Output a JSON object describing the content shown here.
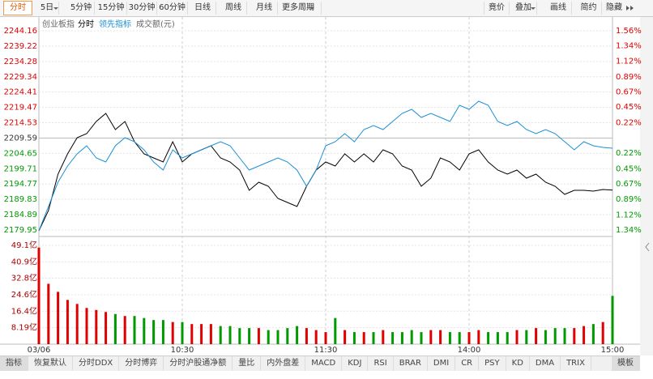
{
  "toolbar": {
    "left": [
      "分时",
      "5日",
      "5分钟",
      "15分钟",
      "30分钟",
      "60分钟",
      "日线",
      "周线",
      "月线",
      "更多周期"
    ],
    "right": [
      "竟价",
      "叠加",
      "画线",
      "简约",
      "隐藏"
    ]
  },
  "chart_data": [
    {
      "type": "line",
      "title": "创业板指",
      "series": [
        {
          "name": "分时",
          "color": "#000000",
          "values": [
            2179.69,
            2186.22,
            2197.96,
            2204.49,
            2209.71,
            2211.01,
            2214.93,
            2217.54,
            2212.32,
            2214.93,
            2208.4,
            2204.49,
            2203.18,
            2201.88,
            2208.4,
            2201.88,
            2204.49,
            2205.79,
            2207.1,
            2203.18,
            2201.88,
            2199.27,
            2192.74,
            2195.35,
            2194.05,
            2190.13,
            2188.83,
            2187.52,
            2194.05,
            2199.27,
            2201.88,
            2200.57,
            2204.49,
            2201.88,
            2204.49,
            2201.88,
            2205.79,
            2204.49,
            2200.57,
            2199.27,
            2194.05,
            2196.66,
            2203.18,
            2201.88,
            2199.27,
            2204.49,
            2205.79,
            2201.88,
            2199.27,
            2197.96,
            2199.27,
            2196.66,
            2197.96,
            2195.35,
            2194.05,
            2191.44,
            2192.74,
            2192.74,
            2192.48,
            2193.0,
            2192.8
          ]
        },
        {
          "name": "领先指标",
          "color": "#1a8fd6",
          "values": [
            2179.69,
            2187.52,
            2195.35,
            2200.57,
            2204.49,
            2207.1,
            2203.18,
            2201.88,
            2207.1,
            2209.71,
            2208.4,
            2205.79,
            2201.88,
            2199.27,
            2205.79,
            2203.18,
            2204.49,
            2205.79,
            2207.1,
            2208.4,
            2207.1,
            2203.18,
            2199.27,
            2200.57,
            2201.88,
            2203.18,
            2201.88,
            2199.27,
            2194.05,
            2199.27,
            2207.1,
            2208.4,
            2211.01,
            2208.4,
            2212.32,
            2213.62,
            2212.32,
            2214.93,
            2217.54,
            2218.84,
            2216.23,
            2217.54,
            2216.23,
            2214.93,
            2220.15,
            2218.84,
            2221.45,
            2220.15,
            2214.93,
            2213.62,
            2214.93,
            2212.32,
            2211.01,
            2212.32,
            2211.01,
            2208.4,
            2205.79,
            2208.4,
            2207.1,
            2206.58,
            2206.31
          ]
        }
      ],
      "ylim": [
        2179.95,
        2244.16
      ],
      "yticks": [
        2244.16,
        2239.22,
        2234.28,
        2229.34,
        2224.41,
        2219.47,
        2214.53,
        2209.59,
        2204.65,
        2199.71,
        2194.77,
        2189.83,
        2184.89,
        2179.95
      ],
      "y2lim": [
        -1.34,
        1.56
      ],
      "y2ticks": [
        {
          "value": 1.56,
          "label": "1.56%"
        },
        {
          "value": 1.34,
          "label": "1.34%"
        },
        {
          "value": 1.12,
          "label": "1.12%"
        },
        {
          "value": 0.89,
          "label": "0.89%"
        },
        {
          "value": 0.67,
          "label": "0.67%"
        },
        {
          "value": 0.45,
          "label": "0.45%"
        },
        {
          "value": 0.22,
          "label": "0.22%"
        },
        {
          "value": -0.22,
          "label": "0.22%"
        },
        {
          "value": -0.45,
          "label": "0.45%"
        },
        {
          "value": -0.67,
          "label": "0.67%"
        },
        {
          "value": -0.89,
          "label": "0.89%"
        },
        {
          "value": -1.12,
          "label": "1.12%"
        },
        {
          "value": -1.34,
          "label": "1.34%"
        }
      ],
      "grid": true
    },
    {
      "type": "bar",
      "title": "成交额(元)",
      "categories": [
        "03/06",
        null,
        null,
        null,
        null,
        null,
        null,
        null,
        null,
        null,
        null,
        null,
        null,
        null,
        null,
        "10:30",
        null,
        null,
        null,
        null,
        null,
        null,
        null,
        null,
        null,
        null,
        null,
        null,
        null,
        null,
        "11:30",
        null,
        null,
        null,
        null,
        null,
        null,
        null,
        null,
        null,
        null,
        null,
        null,
        null,
        null,
        "14:00",
        null,
        null,
        null,
        null,
        null,
        null,
        null,
        null,
        null,
        null,
        null,
        null,
        null,
        null,
        "15:00"
      ],
      "values": [
        48,
        30,
        26,
        22,
        20,
        18,
        17,
        16,
        15,
        14,
        14,
        13,
        12,
        12,
        11,
        11,
        10,
        10,
        10,
        9,
        9,
        8,
        8,
        8,
        7,
        7,
        8,
        9,
        8,
        7,
        6,
        13,
        7,
        6,
        6,
        6,
        7,
        6,
        6,
        7,
        6,
        7,
        7,
        6,
        6,
        6,
        7,
        6,
        6,
        6,
        7,
        7,
        8,
        7,
        8,
        8,
        8,
        9,
        10,
        11,
        24
      ],
      "ylim": [
        0,
        49.1
      ],
      "yticks": [
        {
          "value": 49.1,
          "label": "49.1亿"
        },
        {
          "value": 40.9,
          "label": "40.9亿"
        },
        {
          "value": 32.8,
          "label": "32.8亿"
        },
        {
          "value": 24.6,
          "label": "24.6亿"
        },
        {
          "value": 16.4,
          "label": "16.4亿"
        },
        {
          "value": 8.19,
          "label": "8.19亿"
        }
      ],
      "grid": true
    }
  ],
  "indicator_tabs": [
    "指标",
    "恢复默认",
    "分时DDX",
    "分时博弈",
    "分时沪股通净额",
    "量比",
    "内外盘差",
    "MACD",
    "KDJ",
    "RSI",
    "BRAR",
    "DMI",
    "CR",
    "PSY",
    "KD",
    "DMA",
    "TRIX",
    "模板"
  ]
}
